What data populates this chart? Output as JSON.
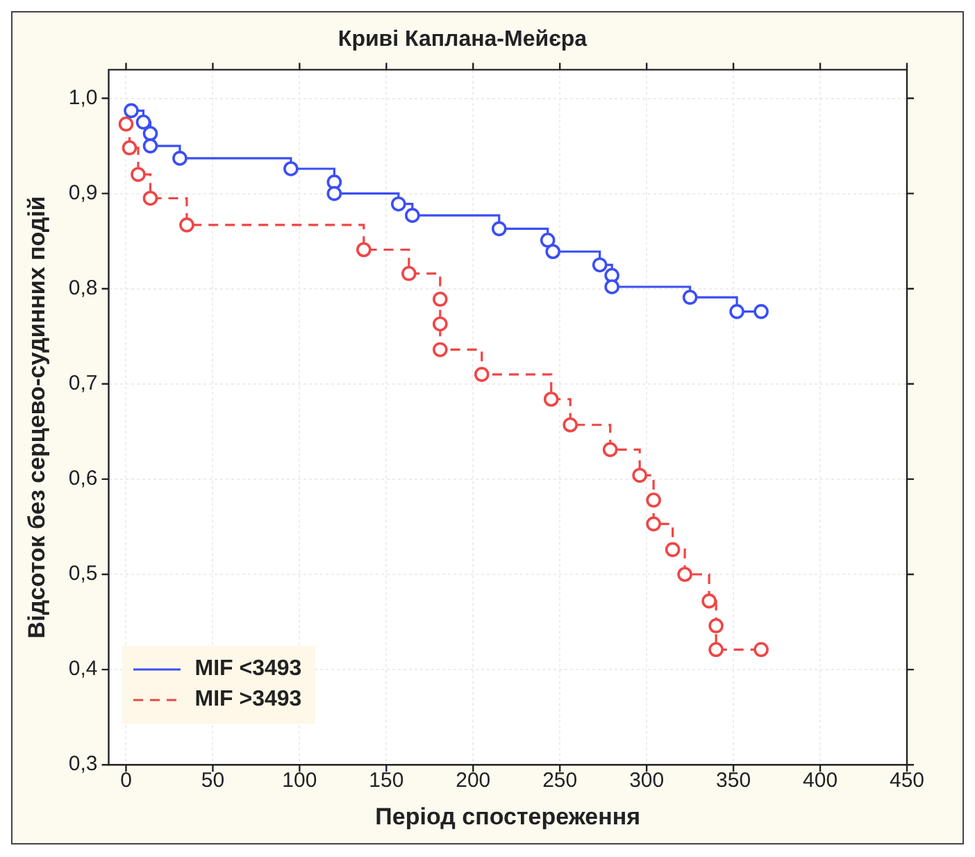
{
  "chart_data": {
    "type": "step",
    "title": "Криві Каплана-Мейєра",
    "xlabel": "Період спостереження",
    "ylabel": "Відсоток без серцево-судинних подій",
    "xlim": [
      -10,
      450
    ],
    "ylim": [
      0.3,
      1.03
    ],
    "xticks": [
      0,
      50,
      100,
      150,
      200,
      250,
      300,
      350,
      400,
      450
    ],
    "yticks": [
      {
        "value": 0.3,
        "label": "0,3"
      },
      {
        "value": 0.4,
        "label": "0,4"
      },
      {
        "value": 0.5,
        "label": "0,5"
      },
      {
        "value": 0.6,
        "label": "0,6"
      },
      {
        "value": 0.7,
        "label": "0,7"
      },
      {
        "value": 0.8,
        "label": "0,8"
      },
      {
        "value": 0.9,
        "label": "0,9"
      },
      {
        "value": 1.0,
        "label": "1,0"
      }
    ],
    "grid": true,
    "legend": "bottom left",
    "marker": "circle",
    "series": [
      {
        "name": "MIF <3493",
        "color": "#3b4ef5",
        "line_style": "solid",
        "x": [
          3,
          10,
          14,
          14,
          31,
          95,
          120,
          120,
          157,
          165,
          215,
          243,
          246,
          273,
          280,
          280,
          325,
          352,
          366
        ],
        "values": [
          0.987,
          0.975,
          0.963,
          0.95,
          0.937,
          0.926,
          0.912,
          0.9,
          0.889,
          0.877,
          0.863,
          0.851,
          0.839,
          0.825,
          0.814,
          0.802,
          0.791,
          0.776,
          0.776
        ]
      },
      {
        "name": "MIF >3493",
        "color": "#f04545",
        "line_style": "dashed",
        "x": [
          0,
          2,
          7,
          14,
          35,
          137,
          163,
          181,
          181,
          181,
          205,
          245,
          256,
          279,
          296,
          304,
          304,
          315,
          322,
          336,
          340,
          340,
          366
        ],
        "values": [
          0.973,
          0.948,
          0.92,
          0.895,
          0.867,
          0.841,
          0.816,
          0.789,
          0.763,
          0.736,
          0.71,
          0.684,
          0.657,
          0.631,
          0.604,
          0.578,
          0.553,
          0.526,
          0.5,
          0.472,
          0.446,
          0.421,
          0.421
        ]
      }
    ]
  }
}
